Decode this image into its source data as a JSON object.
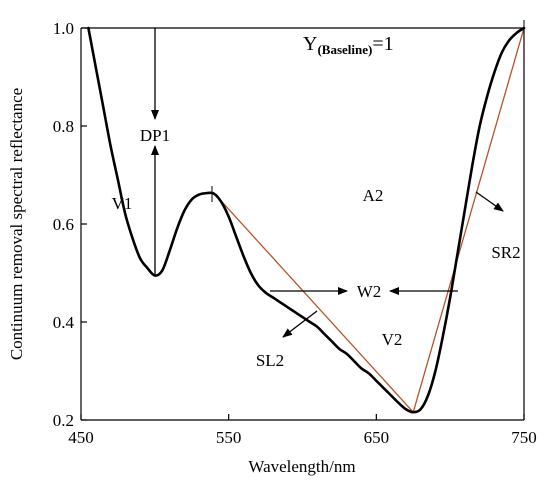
{
  "chart_data": {
    "type": "line",
    "xlabel": "Wavelength/nm",
    "ylabel": "Continuum removal spectral reflectance",
    "xlim": [
      450,
      750
    ],
    "ylim": [
      0.2,
      1.0
    ],
    "x_ticks": [
      "450",
      "550",
      "650",
      "750"
    ],
    "y_ticks": [
      "0.2",
      "0.4",
      "0.6",
      "0.8",
      "1.0"
    ],
    "grid": false,
    "series": [
      {
        "style": "thick-black",
        "x": [
          455,
          460,
          465,
          470,
          475,
          480,
          485,
          490,
          495,
          500,
          505,
          510,
          515,
          520,
          525,
          530,
          535,
          540,
          545,
          550,
          555,
          560,
          565,
          570,
          575,
          580,
          585,
          590,
          595,
          600,
          605,
          610,
          615,
          620,
          625,
          630,
          635,
          640,
          645,
          650,
          655,
          660,
          665,
          670,
          675,
          680,
          685,
          690,
          695,
          700,
          705,
          710,
          715,
          720,
          725,
          730,
          735,
          740,
          745,
          750
        ],
        "values": [
          1.0,
          0.92,
          0.84,
          0.76,
          0.69,
          0.62,
          0.57,
          0.53,
          0.51,
          0.495,
          0.505,
          0.545,
          0.59,
          0.627,
          0.65,
          0.66,
          0.663,
          0.662,
          0.645,
          0.615,
          0.575,
          0.535,
          0.5,
          0.475,
          0.46,
          0.45,
          0.44,
          0.43,
          0.42,
          0.41,
          0.4,
          0.39,
          0.375,
          0.36,
          0.345,
          0.335,
          0.32,
          0.305,
          0.295,
          0.28,
          0.265,
          0.25,
          0.235,
          0.222,
          0.216,
          0.222,
          0.25,
          0.3,
          0.37,
          0.45,
          0.54,
          0.63,
          0.72,
          0.8,
          0.86,
          0.91,
          0.95,
          0.975,
          0.99,
          1.0
        ]
      },
      {
        "style": "thin-red",
        "x": [
          541,
          675,
          750
        ],
        "values": [
          0.66,
          0.216,
          1.0
        ]
      }
    ],
    "annotations": {
      "baseline": "Y",
      "baseline_sub": "(Baseline)",
      "baseline_eq": "=1",
      "dp1": "DP1",
      "v1": "V1",
      "a2": "A2",
      "w2": "W2",
      "v2": "V2",
      "sl2": "SL2",
      "sr2": "SR2"
    },
    "colors": {
      "curve": "#000000",
      "lines": "#b5532a",
      "arrows": "#000000"
    }
  }
}
